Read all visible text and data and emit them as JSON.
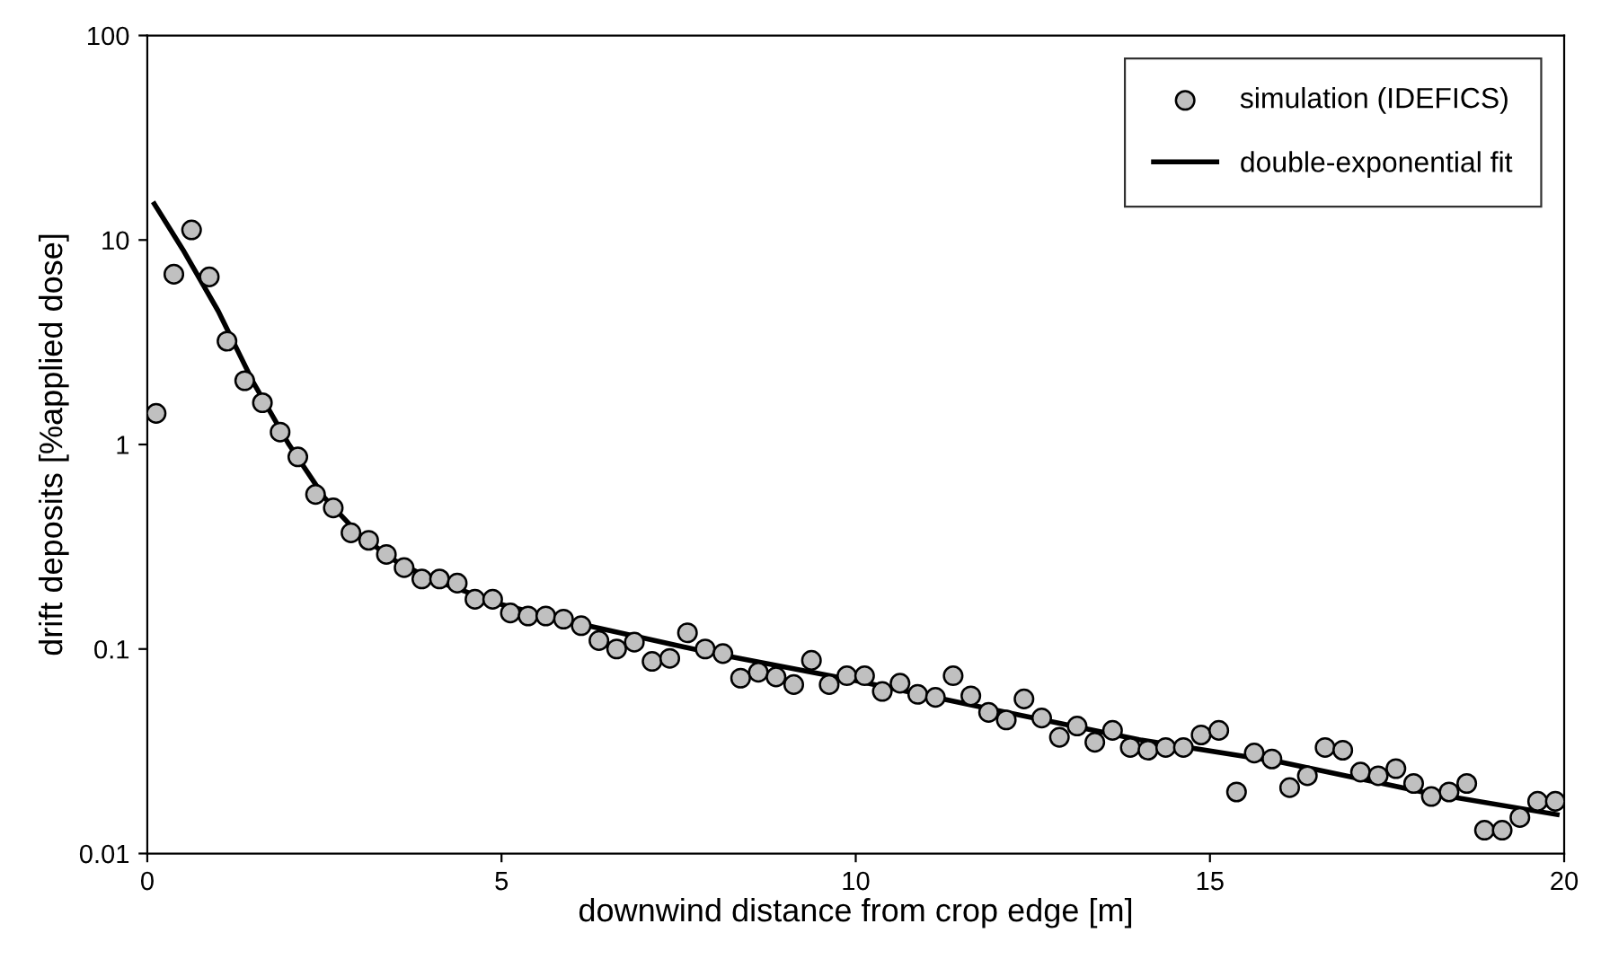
{
  "chart_data": {
    "type": "scatter",
    "xlabel": "downwind distance from crop edge [m]",
    "ylabel": "drift deposits [%applied dose]",
    "log": "y",
    "xlim": [
      0,
      20
    ],
    "xticks": [
      0,
      5,
      10,
      15,
      20
    ],
    "ylim": [
      0.01,
      100
    ],
    "yticks": [
      0.01,
      0.1,
      1,
      10,
      100
    ],
    "grid": false,
    "legend": "top right",
    "series": [
      {
        "name": "simulation (IDEFICS)",
        "color": "#c0c0c0",
        "marker": "circle",
        "x": [
          0.125,
          0.375,
          0.625,
          0.875,
          1.125,
          1.375,
          1.625,
          1.875,
          2.125,
          2.375,
          2.625,
          2.875,
          3.125,
          3.375,
          3.625,
          3.875,
          4.125,
          4.375,
          4.625,
          4.875,
          5.125,
          5.375,
          5.625,
          5.875,
          6.125,
          6.375,
          6.625,
          6.875,
          7.125,
          7.375,
          7.625,
          7.875,
          8.125,
          8.375,
          8.625,
          8.875,
          9.125,
          9.375,
          9.625,
          9.875,
          10.125,
          10.375,
          10.625,
          10.875,
          11.125,
          11.375,
          11.625,
          11.875,
          12.125,
          12.375,
          12.625,
          12.875,
          13.125,
          13.375,
          13.625,
          13.875,
          14.125,
          14.375,
          14.625,
          14.875,
          15.125,
          15.375,
          15.625,
          15.875,
          16.125,
          16.375,
          16.625,
          16.875,
          17.125,
          17.375,
          17.625,
          17.875,
          18.125,
          18.375,
          18.625,
          18.875,
          19.125,
          19.375,
          19.625,
          19.875
        ],
        "values": [
          1.42,
          6.8,
          11.2,
          6.6,
          3.2,
          2.05,
          1.6,
          1.15,
          0.87,
          0.57,
          0.49,
          0.37,
          0.34,
          0.29,
          0.25,
          0.22,
          0.22,
          0.21,
          0.175,
          0.175,
          0.15,
          0.145,
          0.145,
          0.14,
          0.13,
          0.11,
          0.1,
          0.108,
          0.087,
          0.09,
          0.12,
          0.1,
          0.095,
          0.072,
          0.077,
          0.073,
          0.067,
          0.088,
          0.067,
          0.074,
          0.074,
          0.062,
          0.068,
          0.06,
          0.058,
          0.074,
          0.059,
          0.049,
          0.045,
          0.057,
          0.046,
          0.037,
          0.042,
          0.035,
          0.04,
          0.033,
          0.032,
          0.033,
          0.033,
          0.038,
          0.04,
          0.02,
          0.031,
          0.029,
          0.021,
          0.024,
          0.033,
          0.032,
          0.025,
          0.024,
          0.026,
          0.022,
          0.019,
          0.02,
          0.022,
          0.013,
          0.013,
          0.015,
          0.018,
          0.018
        ]
      },
      {
        "name": "double-exponential fit",
        "type": "line",
        "color": "#000000",
        "marker": "none",
        "line_style": "solid",
        "x": [
          0.1,
          0.5,
          1,
          1.5,
          2,
          2.5,
          3,
          3.5,
          4,
          5,
          6,
          8,
          10,
          12,
          14,
          16,
          18,
          19.9
        ],
        "values": [
          15,
          9,
          4.5,
          2,
          1.0,
          0.55,
          0.36,
          0.27,
          0.22,
          0.165,
          0.135,
          0.095,
          0.07,
          0.05,
          0.036,
          0.028,
          0.02,
          0.0155
        ]
      }
    ]
  }
}
